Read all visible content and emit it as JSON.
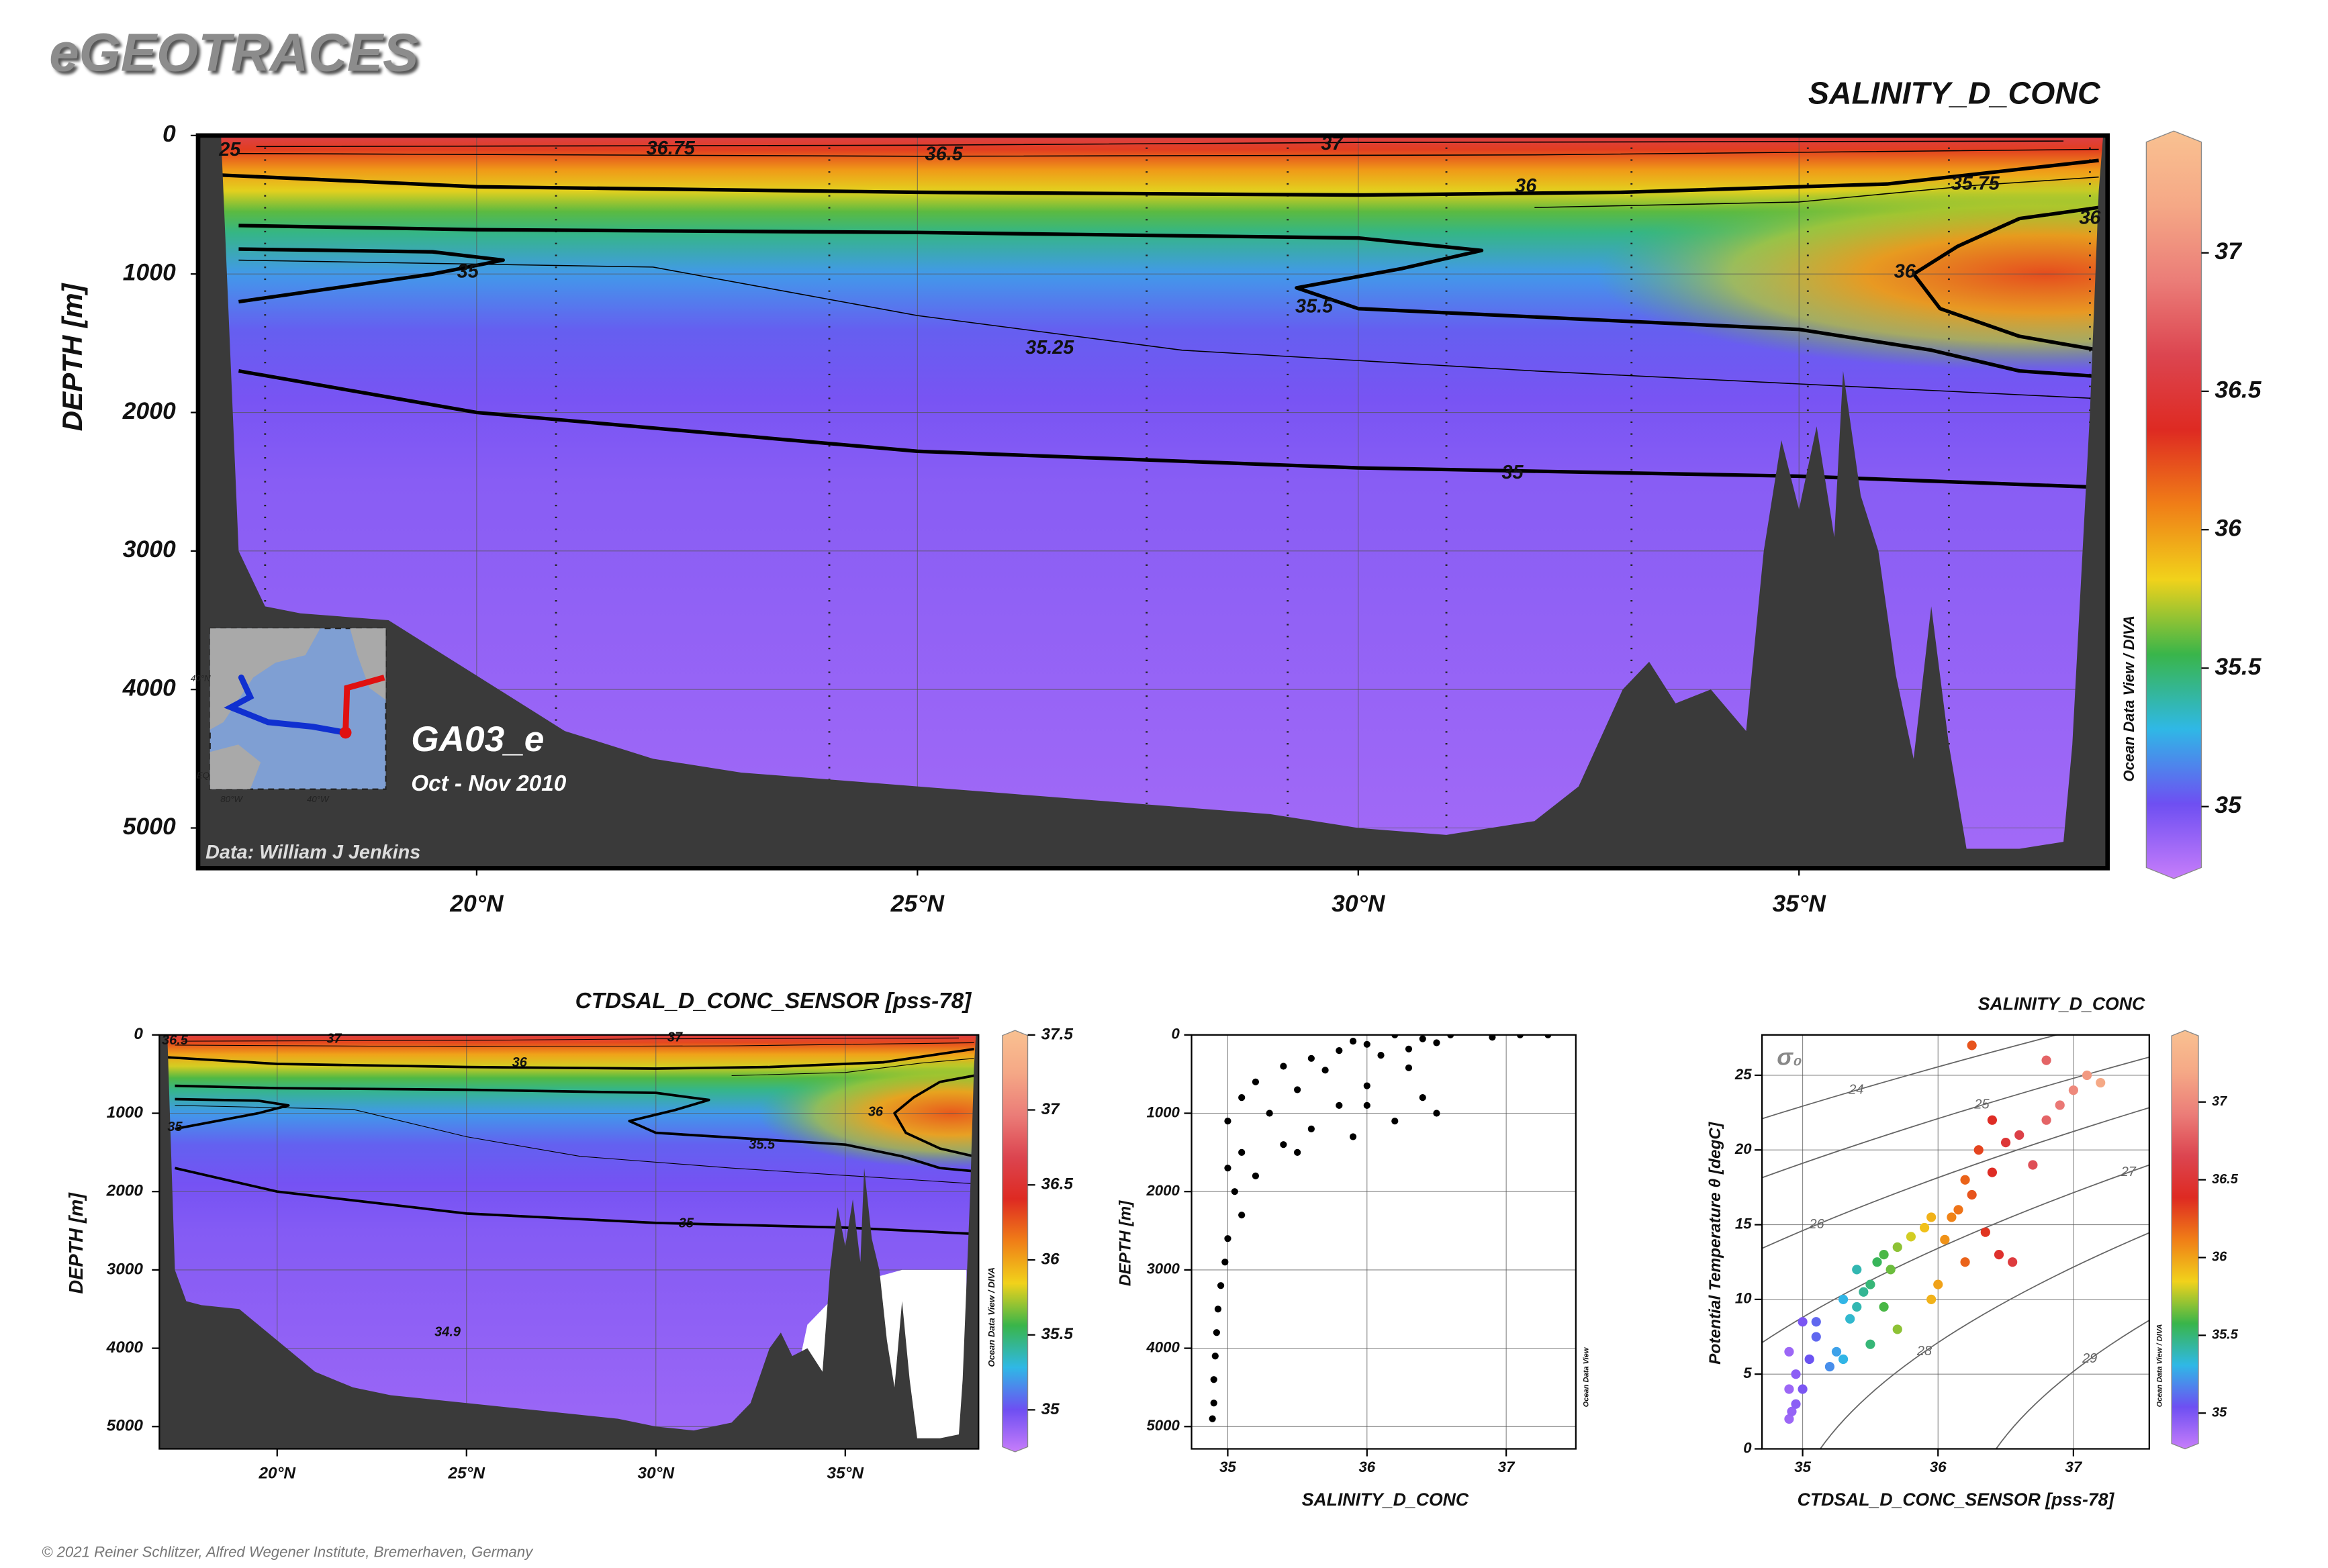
{
  "header": {
    "title": "eGEOTRACES",
    "copyright": "© 2021 Reiner Schlitzer, Alfred Wegener Institute, Bremerhaven, Germany"
  },
  "chart_data": [
    {
      "type": "section",
      "title": "SALINITY_D_CONC",
      "ylabel": "DEPTH [m]",
      "xlim": [
        16.84,
        38.5
      ],
      "ylim": [
        0,
        5290
      ],
      "y_reversed": true,
      "grid": true,
      "xticks": [
        {
          "value": 20,
          "label": "20°N"
        },
        {
          "value": 25,
          "label": "25°N"
        },
        {
          "value": 30,
          "label": "30°N"
        },
        {
          "value": 35,
          "label": "35°N"
        }
      ],
      "yticks": [
        0,
        1000,
        2000,
        3000,
        4000,
        5000
      ],
      "colormap": [
        "#c77dfa",
        "#6e4ff2",
        "#2fb8e6",
        "#39b54a",
        "#f1d21b",
        "#f07e17",
        "#de2a22",
        "#dc4550",
        "#eb7d78",
        "#f5a886",
        "#f9c191"
      ],
      "colorbar": {
        "lim": [
          34.74,
          37.44
        ],
        "ticks": [
          35,
          35.5,
          36,
          36.5,
          37
        ]
      },
      "contour_labels": [
        "25",
        "36.75",
        "36.5",
        "37",
        "36",
        "35.75",
        "36",
        "36",
        "35",
        "35.5",
        "35.25",
        "35"
      ],
      "cruise": "GA03_e",
      "dates": "Oct - Nov 2010",
      "credit": "Data: William J Jenkins",
      "software": "Ocean Data View / DIVA",
      "map_labels": [
        "40°N",
        "EQ",
        "80°W",
        "40°W"
      ]
    },
    {
      "type": "section",
      "title": "CTDSAL_D_CONC_SENSOR [pss-78]",
      "ylabel": "DEPTH [m]",
      "xlim": [
        16.89,
        38.52
      ],
      "ylim": [
        0,
        5285
      ],
      "y_reversed": true,
      "grid": true,
      "xticks": [
        {
          "value": 20,
          "label": "20°N"
        },
        {
          "value": 25,
          "label": "25°N"
        },
        {
          "value": 30,
          "label": "30°N"
        },
        {
          "value": 35,
          "label": "35°N"
        }
      ],
      "yticks": [
        0,
        1000,
        2000,
        3000,
        4000,
        5000
      ],
      "colormap": [
        "#c77dfa",
        "#6e4ff2",
        "#2fb8e6",
        "#39b54a",
        "#f1d21b",
        "#f07e17",
        "#de2a22",
        "#dc4550",
        "#eb7d78",
        "#f5a886",
        "#f9c191"
      ],
      "colorbar": {
        "lim": [
          34.72,
          37.53
        ],
        "ticks": [
          35,
          35.5,
          36,
          36.5,
          37,
          37.5
        ]
      },
      "contour_labels": [
        "36.5",
        "37",
        "37",
        "36",
        "35",
        "36",
        "35.5",
        "35",
        "34.9"
      ],
      "software": "Ocean Data View / DIVA"
    },
    {
      "type": "scatter",
      "xlabel": "SALINITY_D_CONC",
      "ylabel": "DEPTH [m]",
      "xlim": [
        34.74,
        37.5
      ],
      "ylim": [
        0,
        5285
      ],
      "y_reversed": true,
      "grid": true,
      "color": "#000000",
      "xticks": [
        35,
        36,
        37
      ],
      "yticks": [
        0,
        1000,
        2000,
        3000,
        4000,
        5000
      ],
      "x": [
        36.2,
        36.6,
        37.1,
        37.3,
        36.9,
        36.4,
        35.9,
        36.0,
        36.5,
        35.8,
        36.3,
        35.6,
        36.1,
        35.4,
        35.7,
        36.3,
        35.2,
        35.5,
        36.0,
        36.4,
        36.5,
        36.2,
        35.8,
        35.1,
        35.3,
        35.6,
        35.0,
        35.9,
        35.4,
        35.1,
        35.2,
        35.05,
        35.1,
        35.0,
        34.98,
        34.95,
        34.93,
        34.92,
        34.91,
        34.9,
        34.9,
        34.89,
        35.0,
        35.5,
        36.0
      ],
      "values": [
        0,
        0,
        0,
        0,
        30,
        50,
        80,
        120,
        100,
        200,
        180,
        300,
        260,
        400,
        450,
        420,
        600,
        700,
        650,
        800,
        1000,
        1100,
        900,
        800,
        1000,
        1200,
        1100,
        1300,
        1400,
        1500,
        1800,
        2000,
        2300,
        2600,
        2900,
        3200,
        3500,
        3800,
        4100,
        4400,
        4700,
        4900,
        1700,
        1500,
        900
      ],
      "software": "Ocean Data View"
    },
    {
      "type": "scatter",
      "title": "SALINITY_D_CONC",
      "xlabel": "CTDSAL_D_CONC_SENSOR [pss-78]",
      "ylabel": "Potential Temperature θ [degC]",
      "xlim": [
        34.7,
        37.56
      ],
      "ylim": [
        0,
        27.7
      ],
      "grid": true,
      "xticks": [
        35,
        36,
        37
      ],
      "yticks": [
        0,
        5,
        10,
        15,
        20,
        25
      ],
      "x": [
        34.9,
        34.92,
        34.95,
        34.9,
        34.95,
        35.0,
        34.9,
        35.05,
        35.1,
        35.0,
        35.1,
        35.2,
        35.25,
        35.3,
        35.35,
        35.4,
        35.45,
        35.5,
        35.55,
        35.6,
        35.65,
        35.7,
        35.8,
        35.9,
        35.95,
        36.0,
        35.95,
        36.05,
        36.1,
        36.15,
        36.2,
        36.25,
        36.3,
        36.35,
        36.4,
        36.45,
        36.5,
        36.55,
        36.6,
        36.7,
        36.8,
        36.9,
        37.0,
        37.1,
        37.2,
        36.8,
        36.25,
        35.7,
        35.5,
        35.6,
        35.3,
        35.4,
        36.2,
        36.4
      ],
      "values": [
        2,
        2.5,
        3,
        4,
        5,
        4,
        6.5,
        6,
        7.5,
        8.5,
        8.5,
        5.5,
        6.5,
        6,
        8.7,
        9.5,
        10.5,
        11,
        12.5,
        13,
        12,
        13.5,
        14.2,
        14.8,
        15.5,
        11,
        10,
        14,
        15.5,
        16,
        18,
        17,
        20,
        14.5,
        18.5,
        13,
        20.5,
        12.5,
        21,
        19,
        22,
        23,
        24,
        25,
        24.5,
        26,
        27,
        8,
        7,
        9.5,
        10,
        12,
        12.5,
        22
      ],
      "colormap": [
        "#c77dfa",
        "#6e4ff2",
        "#2fb8e6",
        "#39b54a",
        "#f1d21b",
        "#f07e17",
        "#de2a22",
        "#dc4550",
        "#eb7d78",
        "#f5a886",
        "#f9c191"
      ],
      "colorbar": {
        "lim": [
          34.77,
          37.46
        ],
        "ticks": [
          35,
          35.5,
          36,
          36.5,
          37
        ]
      },
      "density_label": "σ₀",
      "density_contours": [
        24,
        25,
        26,
        27,
        28,
        29
      ],
      "software": "Ocean Data View / DIVA"
    }
  ]
}
